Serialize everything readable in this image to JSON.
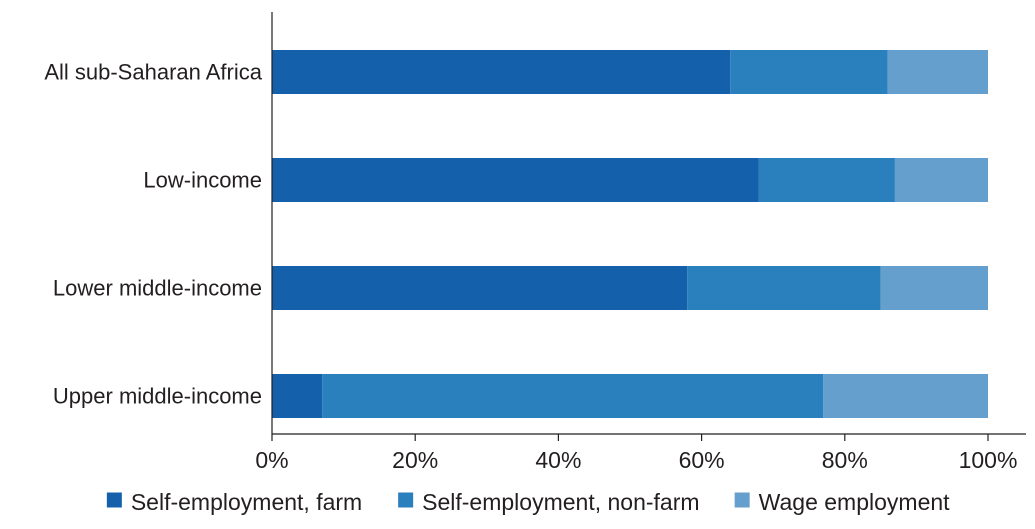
{
  "chart_data": {
    "type": "bar",
    "orientation": "horizontal",
    "stacked": true,
    "title": "",
    "xlabel": "",
    "ylabel": "",
    "xlim": [
      0,
      100
    ],
    "grid": false,
    "legend_position": "bottom",
    "categories": [
      "All sub-Saharan Africa",
      "Low-income",
      "Lower middle-income",
      "Upper middle-income"
    ],
    "x_ticks": [
      "0%",
      "20%",
      "40%",
      "60%",
      "80%",
      "100%"
    ],
    "series": [
      {
        "name": "Self-employment, farm",
        "color": "#1560ab",
        "values": [
          64,
          68,
          58,
          7
        ]
      },
      {
        "name": "Self-employment, non-farm",
        "color": "#2a7fbd",
        "values": [
          22,
          19,
          27,
          70
        ]
      },
      {
        "name": "Wage employment",
        "color": "#659fcd",
        "values": [
          14,
          13,
          15,
          23
        ]
      }
    ]
  }
}
